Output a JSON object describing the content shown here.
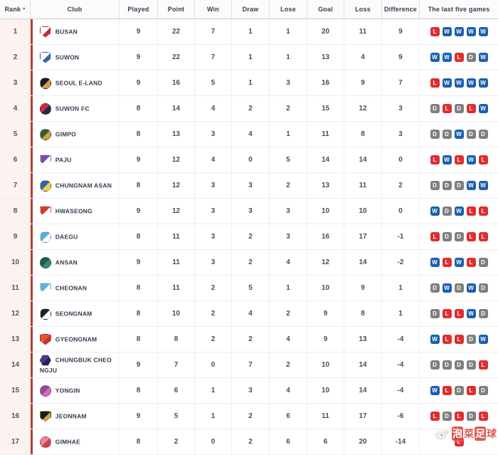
{
  "header": {
    "columns": [
      "Rank",
      "Club",
      "Played",
      "Point",
      "Win",
      "Draw",
      "Lose",
      "Goal",
      "Loss",
      "Difference",
      "The last five games"
    ],
    "sort": {
      "column": "Rank",
      "direction": "desc"
    }
  },
  "icons": {
    "sort_caret": "▾"
  },
  "legend_colors": {
    "win": "#1b5fb0",
    "draw": "#7f7f7f",
    "lose": "#e02e2e"
  },
  "accent": {
    "row_accent_border": "#b23c35",
    "rank_col_bg": "#fdf2f0"
  },
  "teams": [
    {
      "rank": 1,
      "club": "BUSAN",
      "played": 9,
      "point": 22,
      "win": 7,
      "draw": 1,
      "lose": 1,
      "goal": 20,
      "loss": 11,
      "difference": 9,
      "last_five": [
        "L",
        "W",
        "W",
        "W",
        "W"
      ],
      "logo": {
        "shape": "shield",
        "colors": [
          "#ffffff",
          "#c22f33"
        ]
      }
    },
    {
      "rank": 2,
      "club": "SUWON",
      "played": 9,
      "point": 22,
      "win": 7,
      "draw": 1,
      "lose": 1,
      "goal": 13,
      "loss": 4,
      "difference": 9,
      "last_five": [
        "W",
        "W",
        "L",
        "D",
        "W"
      ],
      "logo": {
        "shape": "shield",
        "colors": [
          "#ffffff",
          "#3a66b8"
        ]
      }
    },
    {
      "rank": 3,
      "club": "SEOUL E-LAND",
      "played": 9,
      "point": 16,
      "win": 5,
      "draw": 1,
      "lose": 3,
      "goal": 16,
      "loss": 9,
      "difference": 7,
      "last_five": [
        "L",
        "W",
        "W",
        "W",
        "W"
      ],
      "logo": {
        "shape": "circle",
        "colors": [
          "#1a1a2e",
          "#c9a24b"
        ]
      }
    },
    {
      "rank": 4,
      "club": "SUWON FC",
      "played": 8,
      "point": 14,
      "win": 4,
      "draw": 2,
      "lose": 2,
      "goal": 15,
      "loss": 12,
      "difference": 3,
      "last_five": [
        "D",
        "L",
        "D",
        "L",
        "W"
      ],
      "logo": {
        "shape": "circle",
        "colors": [
          "#d22c3c",
          "#1d2a55"
        ]
      }
    },
    {
      "rank": 5,
      "club": "GIMPO",
      "played": 8,
      "point": 13,
      "win": 3,
      "draw": 4,
      "lose": 1,
      "goal": 11,
      "loss": 8,
      "difference": 3,
      "last_five": [
        "D",
        "D",
        "W",
        "D",
        "D"
      ],
      "logo": {
        "shape": "circle",
        "colors": [
          "#2f5d3a",
          "#c8a43f"
        ]
      }
    },
    {
      "rank": 6,
      "club": "PAJU",
      "played": 9,
      "point": 12,
      "win": 4,
      "draw": 0,
      "lose": 5,
      "goal": 14,
      "loss": 14,
      "difference": 0,
      "last_five": [
        "L",
        "W",
        "L",
        "W",
        "L"
      ],
      "logo": {
        "shape": "shield",
        "colors": [
          "#7a4fb5",
          "#ffffff"
        ]
      }
    },
    {
      "rank": 7,
      "club": "CHUNGNAM ASAN",
      "played": 8,
      "point": 12,
      "win": 3,
      "draw": 3,
      "lose": 2,
      "goal": 13,
      "loss": 11,
      "difference": 2,
      "last_five": [
        "D",
        "D",
        "D",
        "W",
        "W"
      ],
      "logo": {
        "shape": "circle",
        "colors": [
          "#2b64b8",
          "#f2d23e"
        ]
      }
    },
    {
      "rank": 8,
      "club": "HWASEONG",
      "played": 9,
      "point": 12,
      "win": 3,
      "draw": 3,
      "lose": 3,
      "goal": 10,
      "loss": 10,
      "difference": 0,
      "last_five": [
        "W",
        "D",
        "W",
        "L",
        "L"
      ],
      "logo": {
        "shape": "shield",
        "colors": [
          "#d63a31",
          "#ffffff"
        ]
      }
    },
    {
      "rank": 9,
      "club": "DAEGU",
      "played": 8,
      "point": 11,
      "win": 3,
      "draw": 2,
      "lose": 3,
      "goal": 16,
      "loss": 17,
      "difference": -1,
      "last_five": [
        "L",
        "D",
        "D",
        "L",
        "L"
      ],
      "logo": {
        "shape": "circle",
        "colors": [
          "#58aee0",
          "#ffffff"
        ]
      }
    },
    {
      "rank": 10,
      "club": "ANSAN",
      "played": 9,
      "point": 11,
      "win": 3,
      "draw": 2,
      "lose": 4,
      "goal": 12,
      "loss": 14,
      "difference": -2,
      "last_five": [
        "W",
        "L",
        "W",
        "L",
        "D"
      ],
      "logo": {
        "shape": "circle",
        "colors": [
          "#1f5c4a",
          "#3a8a6e"
        ]
      }
    },
    {
      "rank": 11,
      "club": "CHEONAN",
      "played": 8,
      "point": 11,
      "win": 2,
      "draw": 5,
      "lose": 1,
      "goal": 10,
      "loss": 9,
      "difference": 1,
      "last_five": [
        "D",
        "W",
        "D",
        "W",
        "D"
      ],
      "logo": {
        "shape": "shield",
        "colors": [
          "#5bb3e0",
          "#ffffff"
        ]
      }
    },
    {
      "rank": 12,
      "club": "SEONGNAM",
      "played": 8,
      "point": 10,
      "win": 2,
      "draw": 4,
      "lose": 2,
      "goal": 9,
      "loss": 8,
      "difference": 1,
      "last_five": [
        "D",
        "L",
        "L",
        "W",
        "D"
      ],
      "logo": {
        "shape": "circle",
        "colors": [
          "#222222",
          "#ffffff"
        ]
      }
    },
    {
      "rank": 13,
      "club": "GYEONGNAM",
      "played": 8,
      "point": 8,
      "win": 2,
      "draw": 2,
      "lose": 4,
      "goal": 9,
      "loss": 13,
      "difference": -4,
      "last_five": [
        "W",
        "L",
        "L",
        "D",
        "W"
      ],
      "logo": {
        "shape": "shield",
        "colors": [
          "#e2542b",
          "#c22f33"
        ]
      }
    },
    {
      "rank": 14,
      "club": "CHUNGBUK CHEONGJU",
      "played": 9,
      "point": 7,
      "win": 0,
      "draw": 7,
      "lose": 2,
      "goal": 10,
      "loss": 14,
      "difference": -4,
      "last_five": [
        "D",
        "D",
        "D",
        "D",
        "L"
      ],
      "logo": {
        "shape": "hexagon",
        "colors": [
          "#4a3a8c",
          "#2a2250"
        ]
      }
    },
    {
      "rank": 15,
      "club": "YONGIN",
      "played": 8,
      "point": 6,
      "win": 1,
      "draw": 3,
      "lose": 4,
      "goal": 10,
      "loss": 14,
      "difference": -4,
      "last_five": [
        "W",
        "L",
        "D",
        "L",
        "D"
      ],
      "logo": {
        "shape": "circle",
        "colors": [
          "#8a4a9e",
          "#d86ab0"
        ]
      }
    },
    {
      "rank": 16,
      "club": "JEONNAM",
      "played": 9,
      "point": 5,
      "win": 1,
      "draw": 2,
      "lose": 6,
      "goal": 11,
      "loss": 17,
      "difference": -6,
      "last_five": [
        "L",
        "D",
        "L",
        "D",
        "L"
      ],
      "logo": {
        "shape": "shield",
        "colors": [
          "#1a1a1a",
          "#c9a24b"
        ]
      }
    },
    {
      "rank": 17,
      "club": "GIMHAE",
      "played": 8,
      "point": 2,
      "win": 0,
      "draw": 2,
      "lose": 6,
      "goal": 6,
      "loss": 20,
      "difference": -14,
      "last_five": [
        "L"
      ],
      "last_five_obscured_by_watermark": true,
      "logo": {
        "shape": "circle",
        "colors": [
          "#e88a96",
          "#d0404e"
        ]
      }
    }
  ],
  "watermark": {
    "icon": "weibo-icon",
    "chars": [
      "泡",
      "菜",
      "足",
      "球"
    ]
  }
}
